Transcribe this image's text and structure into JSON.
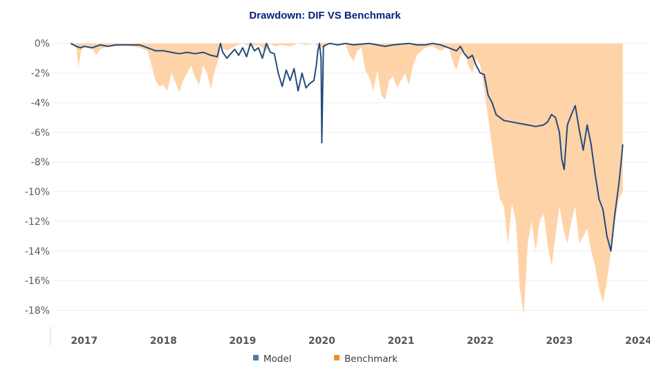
{
  "colors": {
    "title": "#0b1f7a",
    "model": "#224a7c",
    "model_legend": "#4e79a7",
    "benchmark_fill": "#ffd3a8",
    "benchmark_legend": "#f28e2b",
    "grid": "#eeeeee",
    "axis": "#d8d8d8"
  },
  "chart_data": {
    "type": "area",
    "title": "Drawdown: DIF VS Benchmark",
    "xlabel": "",
    "ylabel": "",
    "x_range": [
      2016.6,
      2024.1
    ],
    "ylim": [
      -19,
      0.5
    ],
    "y_ticks": [
      0,
      -2,
      -4,
      -6,
      -8,
      -10,
      -12,
      -14,
      -16,
      -18
    ],
    "y_tick_labels": [
      "0%",
      "-2%",
      "-4%",
      "-6%",
      "-8%",
      "-10%",
      "-12%",
      "-14%",
      "-16%",
      "-18%"
    ],
    "x_ticks": [
      2017,
      2018,
      2019,
      2020,
      2021,
      2022,
      2023,
      2024
    ],
    "x_tick_labels": [
      "2017",
      "2018",
      "2019",
      "2020",
      "2021",
      "2022",
      "2023",
      "2024"
    ],
    "grid": true,
    "legend_position": "bottom-center",
    "series": [
      {
        "name": "Model",
        "kind": "line",
        "x": [
          2016.83,
          2016.9,
          2016.95,
          2017.0,
          2017.1,
          2017.2,
          2017.3,
          2017.4,
          2017.55,
          2017.7,
          2017.8,
          2017.9,
          2018.0,
          2018.1,
          2018.2,
          2018.3,
          2018.4,
          2018.5,
          2018.6,
          2018.68,
          2018.72,
          2018.75,
          2018.8,
          2018.85,
          2018.9,
          2018.95,
          2019.0,
          2019.05,
          2019.1,
          2019.15,
          2019.2,
          2019.25,
          2019.3,
          2019.35,
          2019.4,
          2019.45,
          2019.5,
          2019.55,
          2019.6,
          2019.65,
          2019.7,
          2019.75,
          2019.8,
          2019.85,
          2019.9,
          2019.93,
          2019.95,
          2019.97,
          2019.99,
          2020.0,
          2020.02,
          2020.05,
          2020.1,
          2020.2,
          2020.3,
          2020.4,
          2020.5,
          2020.6,
          2020.7,
          2020.8,
          2020.9,
          2021.0,
          2021.1,
          2021.2,
          2021.3,
          2021.4,
          2021.5,
          2021.6,
          2021.7,
          2021.75,
          2021.8,
          2021.85,
          2021.9,
          2021.95,
          2022.0,
          2022.05,
          2022.1,
          2022.15,
          2022.2,
          2022.25,
          2022.3,
          2022.4,
          2022.5,
          2022.6,
          2022.7,
          2022.8,
          2022.85,
          2022.9,
          2022.95,
          2023.0,
          2023.03,
          2023.06,
          2023.1,
          2023.15,
          2023.2,
          2023.25,
          2023.3,
          2023.35,
          2023.4,
          2023.45,
          2023.5,
          2023.55,
          2023.6,
          2023.65,
          2023.7,
          2023.75,
          2023.78,
          2023.8
        ],
        "y": [
          0.0,
          -0.2,
          -0.3,
          -0.2,
          -0.3,
          -0.1,
          -0.2,
          -0.1,
          -0.1,
          -0.1,
          -0.3,
          -0.5,
          -0.5,
          -0.6,
          -0.7,
          -0.6,
          -0.7,
          -0.6,
          -0.8,
          -0.9,
          0.0,
          -0.6,
          -1.0,
          -0.7,
          -0.4,
          -0.8,
          -0.3,
          -0.9,
          0.0,
          -0.5,
          -0.3,
          -1.0,
          0.0,
          -0.6,
          -0.7,
          -2.0,
          -2.9,
          -1.8,
          -2.5,
          -1.7,
          -3.2,
          -2.0,
          -3.0,
          -2.7,
          -2.5,
          -1.5,
          -0.5,
          0.0,
          -1.0,
          -6.7,
          -0.2,
          -0.1,
          0.0,
          -0.1,
          0.0,
          -0.1,
          -0.05,
          0.0,
          -0.1,
          -0.2,
          -0.1,
          -0.05,
          0.0,
          -0.1,
          -0.1,
          0.0,
          -0.1,
          -0.3,
          -0.5,
          -0.2,
          -0.7,
          -1.0,
          -0.8,
          -1.5,
          -2.0,
          -2.1,
          -3.5,
          -4.0,
          -4.8,
          -5.0,
          -5.2,
          -5.3,
          -5.4,
          -5.5,
          -5.6,
          -5.5,
          -5.3,
          -4.8,
          -5.0,
          -6.0,
          -7.8,
          -8.5,
          -5.5,
          -4.8,
          -4.2,
          -5.8,
          -7.2,
          -5.5,
          -6.8,
          -8.8,
          -10.5,
          -11.2,
          -13.0,
          -14.0,
          -11.5,
          -9.5,
          -8.0,
          -6.8
        ]
      },
      {
        "name": "Benchmark",
        "kind": "area",
        "x": [
          2016.83,
          2016.9,
          2016.93,
          2016.96,
          2017.0,
          2017.1,
          2017.15,
          2017.2,
          2017.3,
          2017.4,
          2017.5,
          2017.6,
          2017.7,
          2017.8,
          2017.85,
          2017.9,
          2017.95,
          2018.0,
          2018.05,
          2018.1,
          2018.15,
          2018.2,
          2018.25,
          2018.3,
          2018.35,
          2018.4,
          2018.45,
          2018.5,
          2018.55,
          2018.6,
          2018.65,
          2018.7,
          2018.72,
          2018.75,
          2018.8,
          2018.9,
          2019.0,
          2019.1,
          2019.2,
          2019.3,
          2019.35,
          2019.4,
          2019.5,
          2019.6,
          2019.7,
          2019.8,
          2019.9,
          2019.95,
          2019.97,
          2020.0,
          2020.05,
          2020.1,
          2020.2,
          2020.3,
          2020.35,
          2020.4,
          2020.45,
          2020.5,
          2020.55,
          2020.6,
          2020.65,
          2020.7,
          2020.75,
          2020.8,
          2020.85,
          2020.9,
          2020.95,
          2021.0,
          2021.05,
          2021.1,
          2021.15,
          2021.2,
          2021.3,
          2021.4,
          2021.5,
          2021.6,
          2021.65,
          2021.7,
          2021.75,
          2021.8,
          2021.85,
          2021.9,
          2021.95,
          2022.0,
          2022.05,
          2022.1,
          2022.15,
          2022.2,
          2022.25,
          2022.3,
          2022.35,
          2022.4,
          2022.45,
          2022.5,
          2022.55,
          2022.6,
          2022.65,
          2022.7,
          2022.75,
          2022.8,
          2022.85,
          2022.9,
          2022.95,
          2023.0,
          2023.05,
          2023.1,
          2023.15,
          2023.2,
          2023.25,
          2023.3,
          2023.35,
          2023.4,
          2023.45,
          2023.5,
          2023.55,
          2023.6,
          2023.65,
          2023.7,
          2023.75,
          2023.8
        ],
        "y": [
          0.0,
          -0.3,
          -1.6,
          -0.5,
          -0.2,
          -0.3,
          -0.8,
          -0.4,
          -0.2,
          -0.2,
          -0.1,
          -0.2,
          -0.3,
          -0.5,
          -1.5,
          -2.5,
          -2.9,
          -2.8,
          -3.2,
          -2.0,
          -2.6,
          -3.3,
          -2.5,
          -2.0,
          -1.5,
          -2.3,
          -2.8,
          -1.5,
          -2.0,
          -3.1,
          -1.8,
          -1.0,
          0.0,
          -0.3,
          -0.5,
          -0.2,
          0.0,
          -0.2,
          -0.1,
          -0.5,
          0.0,
          -0.2,
          -0.1,
          -0.2,
          0.0,
          -0.1,
          0.0,
          -0.2,
          0.0,
          -0.3,
          -0.2,
          0.0,
          -0.1,
          -0.1,
          -0.8,
          -1.2,
          -0.5,
          -0.3,
          -1.8,
          -2.3,
          -3.2,
          -1.8,
          -3.5,
          -3.8,
          -2.5,
          -2.2,
          -3.0,
          -2.5,
          -2.0,
          -2.8,
          -1.5,
          -0.8,
          -0.3,
          -0.2,
          -0.5,
          -0.2,
          -1.2,
          -1.8,
          -0.8,
          -0.5,
          -1.5,
          -2.0,
          -1.0,
          -1.5,
          -3.0,
          -5.0,
          -7.0,
          -9.0,
          -10.5,
          -11.0,
          -13.5,
          -10.8,
          -12.0,
          -16.5,
          -18.3,
          -13.5,
          -12.0,
          -14.0,
          -12.0,
          -11.5,
          -13.5,
          -15.0,
          -13.0,
          -11.0,
          -12.5,
          -13.5,
          -12.0,
          -11.0,
          -13.5,
          -13.0,
          -12.5,
          -14.0,
          -15.0,
          -16.5,
          -17.5,
          -16.0,
          -14.0,
          -12.0,
          -10.5,
          -10.0
        ]
      }
    ]
  },
  "legend": {
    "items": [
      {
        "label": "Model",
        "color": "#4e79a7"
      },
      {
        "label": "Benchmark",
        "color": "#f28e2b"
      }
    ]
  }
}
